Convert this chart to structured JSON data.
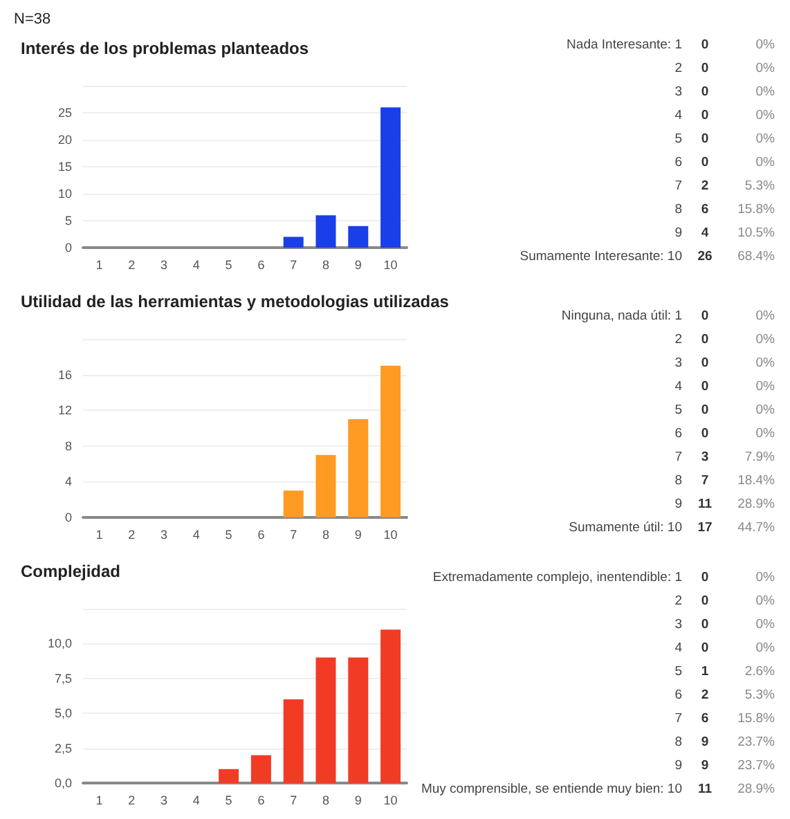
{
  "chart_data": [
    {
      "type": "bar",
      "title": "Interés de los problemas planteados",
      "categories": [
        "1",
        "2",
        "3",
        "4",
        "5",
        "6",
        "7",
        "8",
        "9",
        "10"
      ],
      "values": [
        0,
        0,
        0,
        0,
        0,
        0,
        2,
        6,
        4,
        26
      ],
      "color": "#1a3ee8",
      "ylim": [
        0,
        30
      ],
      "yticks": [
        0,
        5,
        10,
        15,
        20,
        25,
        {
          "value": 30,
          "label": null
        }
      ],
      "grid": "y",
      "annotations": [
        "N=38"
      ]
    },
    {
      "type": "heatmap",
      "data_labels": true,
      "categories": [
        null
      ],
      "y_categories": [
        "Nada Interesante: 1",
        "2",
        "3",
        "4",
        "5",
        "6",
        "7",
        "8",
        "9",
        "Sumamente Interesante: 10"
      ],
      "cells": [
        [
          0
        ],
        [
          0
        ],
        [
          0
        ],
        [
          0
        ],
        [
          0
        ],
        [
          0
        ],
        [
          2
        ],
        [
          6
        ],
        [
          4
        ],
        [
          26
        ]
      ],
      "y2_categories": [
        "0%",
        "0%",
        "0%",
        "0%",
        "0%",
        "0%",
        "5.3%",
        "15.8%",
        "10.5%",
        "68.4%"
      ]
    },
    {
      "type": "bar",
      "title": "Utilidad de las herramientas y metodologias utilizadas",
      "categories": [
        "1",
        "2",
        "3",
        "4",
        "5",
        "6",
        "7",
        "8",
        "9",
        "10"
      ],
      "values": [
        0,
        0,
        0,
        0,
        0,
        0,
        3,
        7,
        11,
        17
      ],
      "color": "#ff9a22",
      "ylim": [
        0,
        20
      ],
      "yticks": [
        0,
        4,
        8,
        12,
        16,
        {
          "value": 20,
          "label": null
        }
      ],
      "grid": "y"
    },
    {
      "type": "heatmap",
      "data_labels": true,
      "categories": [
        null
      ],
      "y_categories": [
        "Ninguna, nada útil: 1",
        "2",
        "3",
        "4",
        "5",
        "6",
        "7",
        "8",
        "9",
        "Sumamente útil: 10"
      ],
      "cells": [
        [
          0
        ],
        [
          0
        ],
        [
          0
        ],
        [
          0
        ],
        [
          0
        ],
        [
          0
        ],
        [
          3
        ],
        [
          7
        ],
        [
          11
        ],
        [
          17
        ]
      ],
      "y2_categories": [
        "0%",
        "0%",
        "0%",
        "0%",
        "0%",
        "0%",
        "7.9%",
        "18.4%",
        "28.9%",
        "44.7%"
      ]
    },
    {
      "type": "bar",
      "title": "Complejidad",
      "categories": [
        "1",
        "2",
        "3",
        "4",
        "5",
        "6",
        "7",
        "8",
        "9",
        "10"
      ],
      "values": [
        0,
        0,
        0,
        0,
        1,
        2,
        6,
        9,
        9,
        11
      ],
      "color": "#f23b24",
      "ylim": [
        0,
        12.5
      ],
      "yticks": [
        {
          "value": 0,
          "label": "0,0"
        },
        {
          "value": 2.5,
          "label": "2,5"
        },
        {
          "value": 5,
          "label": "5,0"
        },
        {
          "value": 7.5,
          "label": "7,5"
        },
        {
          "value": 10,
          "label": "10,0"
        },
        {
          "value": 12.5,
          "label": null
        }
      ],
      "grid": "y"
    },
    {
      "type": "heatmap",
      "data_labels": true,
      "categories": [
        null
      ],
      "y_categories": [
        "Extremadamente complejo, inentendible: 1",
        "2",
        "3",
        "4",
        "5",
        "6",
        "7",
        "8",
        "9",
        "Muy comprensible, se entiende muy bien: 10"
      ],
      "cells": [
        [
          0
        ],
        [
          0
        ],
        [
          0
        ],
        [
          0
        ],
        [
          1
        ],
        [
          2
        ],
        [
          6
        ],
        [
          9
        ],
        [
          9
        ],
        [
          11
        ]
      ],
      "y2_categories": [
        "0%",
        "0%",
        "0%",
        "0%",
        "2.6%",
        "5.3%",
        "15.8%",
        "23.7%",
        "23.7%",
        "28.9%"
      ]
    }
  ]
}
